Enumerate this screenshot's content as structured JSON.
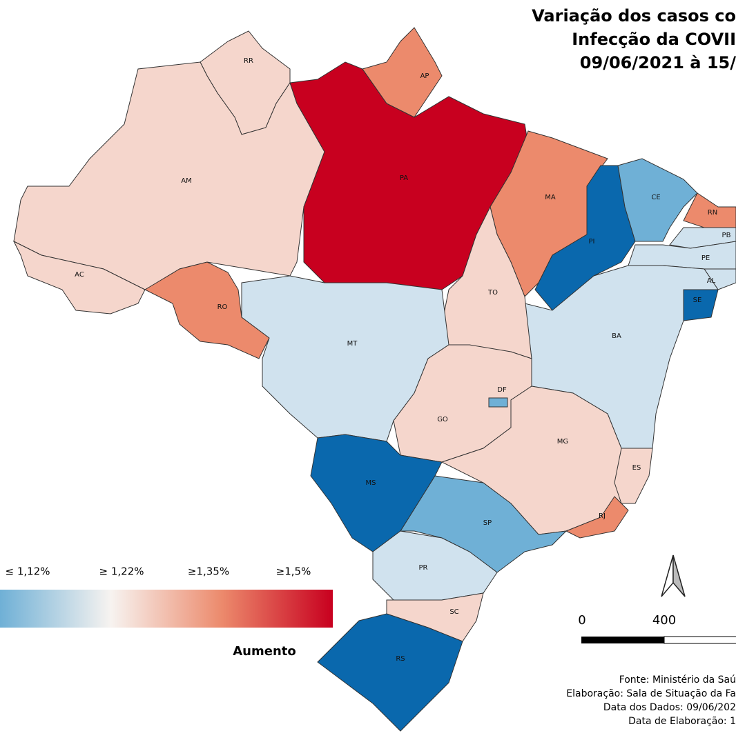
{
  "title": [
    "Variação dos casos co",
    "Infecção da COVII",
    "09/06/2021 à 15/"
  ],
  "states": [
    {
      "code": "RR",
      "color": "#f5d6cc"
    },
    {
      "code": "AM",
      "color": "#f5d6cc"
    },
    {
      "code": "AC",
      "color": "#f5d6cc"
    },
    {
      "code": "RO",
      "color": "#ec8a6c"
    },
    {
      "code": "PA",
      "color": "#c8001f"
    },
    {
      "code": "AP",
      "color": "#ec8a6c"
    },
    {
      "code": "MA",
      "color": "#ec8a6c"
    },
    {
      "code": "PI",
      "color": "#0a68ad"
    },
    {
      "code": "CE",
      "color": "#6fb0d6"
    },
    {
      "code": "RN",
      "color": "#ec8a6c"
    },
    {
      "code": "PB",
      "color": "#d0e2ee"
    },
    {
      "code": "PE",
      "color": "#d0e2ee"
    },
    {
      "code": "AL",
      "color": "#d0e2ee"
    },
    {
      "code": "SE",
      "color": "#0a68ad"
    },
    {
      "code": "BA",
      "color": "#d0e2ee"
    },
    {
      "code": "TO",
      "color": "#f5d6cc"
    },
    {
      "code": "MT",
      "color": "#d0e2ee"
    },
    {
      "code": "GO",
      "color": "#f5d6cc"
    },
    {
      "code": "DF",
      "color": "#6fb0d6"
    },
    {
      "code": "MG",
      "color": "#f5d6cc"
    },
    {
      "code": "ES",
      "color": "#f5d6cc"
    },
    {
      "code": "RJ",
      "color": "#ec8a6c"
    },
    {
      "code": "SP",
      "color": "#6fb0d6"
    },
    {
      "code": "MS",
      "color": "#0a68ad"
    },
    {
      "code": "PR",
      "color": "#d0e2ee"
    },
    {
      "code": "SC",
      "color": "#f5d6cc"
    },
    {
      "code": "RS",
      "color": "#0a68ad"
    }
  ],
  "legend": {
    "labels": [
      "≤ 1,12%",
      "≥ 1,22%",
      "≥1,35%",
      "≥1,5%"
    ],
    "caption": "Aumento",
    "colors": [
      "#6fb0d6",
      "#f7f3f0",
      "#ec8a6c",
      "#c8001f"
    ]
  },
  "scale": [
    "0",
    "400",
    "8"
  ],
  "source": [
    "Fonte: Ministério da Saú",
    "Elaboração: Sala de Situação da Fa",
    "Data dos Dados: 09/06/202",
    "Data de Elaboração: 1"
  ]
}
